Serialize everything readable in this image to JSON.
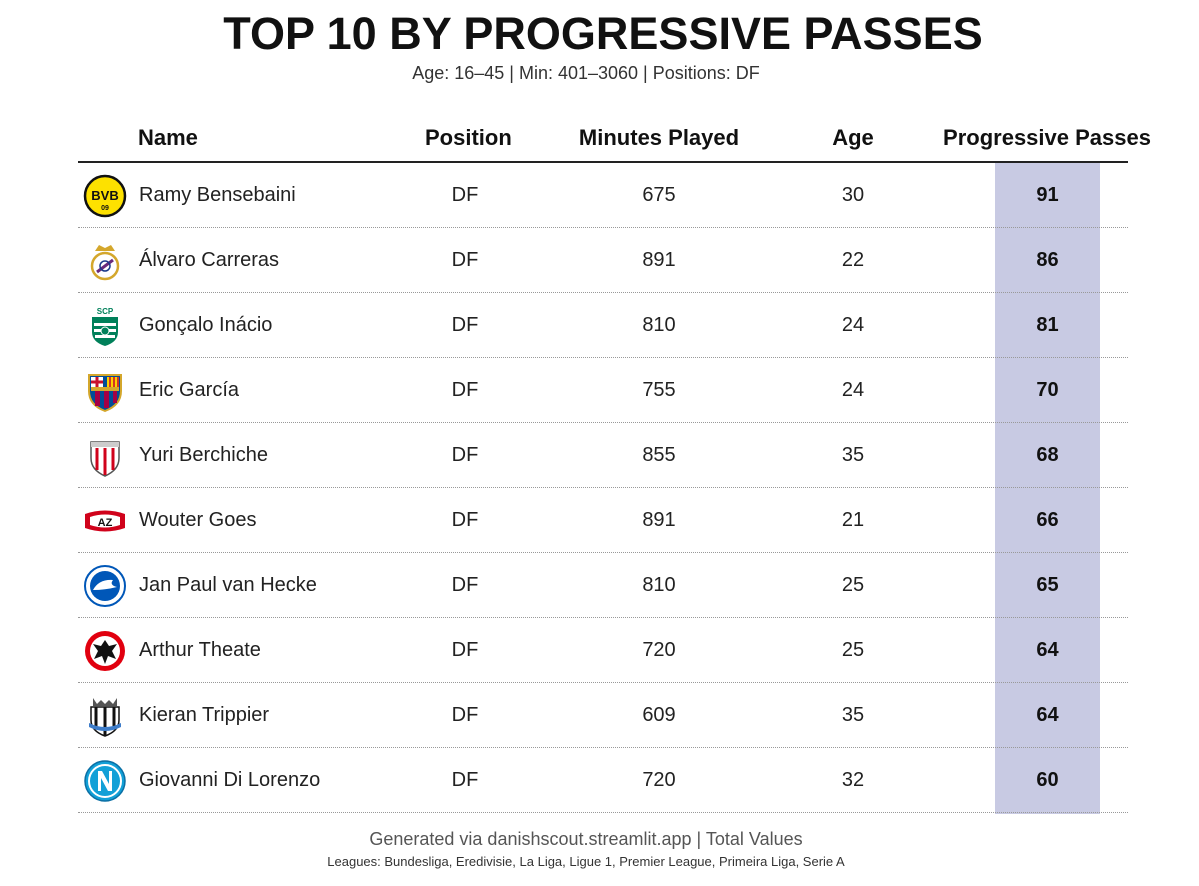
{
  "header": {
    "title": "TOP 10 BY PROGRESSIVE PASSES",
    "subtitle": "Age: 16–45 | Min: 401–3060 | Positions: DF"
  },
  "footer": {
    "source": "Generated via danishscout.streamlit.app | Total Values",
    "leagues": "Leagues: Bundesliga, Eredivisie, La Liga, Ligue 1, Premier League, Primeira Liga, Serie A"
  },
  "chart_data": {
    "type": "table",
    "title": "TOP 10 BY PROGRESSIVE PASSES",
    "subtitle": "Age: 16–45 | Min: 401–3060 | Positions: DF",
    "columns": [
      "Name",
      "Position",
      "Minutes Played",
      "Age",
      "Progressive Passes"
    ],
    "highlight_column": "Progressive Passes",
    "highlight_color": "#c8cae3",
    "rows": [
      {
        "name": "Ramy Bensebaini",
        "position": "DF",
        "minutes": "675",
        "age": "30",
        "progressive_passes": "91",
        "logo": "dortmund-logo-icon"
      },
      {
        "name": "Álvaro Carreras",
        "position": "DF",
        "minutes": "891",
        "age": "22",
        "progressive_passes": "86",
        "logo": "real-madrid-logo-icon"
      },
      {
        "name": "Gonçalo Inácio",
        "position": "DF",
        "minutes": "810",
        "age": "24",
        "progressive_passes": "81",
        "logo": "sporting-cp-logo-icon"
      },
      {
        "name": "Eric García",
        "position": "DF",
        "minutes": "755",
        "age": "24",
        "progressive_passes": "70",
        "logo": "barcelona-logo-icon"
      },
      {
        "name": "Yuri Berchiche",
        "position": "DF",
        "minutes": "855",
        "age": "35",
        "progressive_passes": "68",
        "logo": "athletic-bilbao-logo-icon"
      },
      {
        "name": "Wouter Goes",
        "position": "DF",
        "minutes": "891",
        "age": "21",
        "progressive_passes": "66",
        "logo": "az-alkmaar-logo-icon"
      },
      {
        "name": "Jan Paul van Hecke",
        "position": "DF",
        "minutes": "810",
        "age": "25",
        "progressive_passes": "65",
        "logo": "brighton-logo-icon"
      },
      {
        "name": "Arthur Theate",
        "position": "DF",
        "minutes": "720",
        "age": "25",
        "progressive_passes": "64",
        "logo": "eintracht-frankfurt-logo-icon"
      },
      {
        "name": "Kieran Trippier",
        "position": "DF",
        "minutes": "609",
        "age": "35",
        "progressive_passes": "64",
        "logo": "newcastle-logo-icon"
      },
      {
        "name": "Giovanni Di Lorenzo",
        "position": "DF",
        "minutes": "720",
        "age": "32",
        "progressive_passes": "60",
        "logo": "napoli-logo-icon"
      }
    ]
  }
}
